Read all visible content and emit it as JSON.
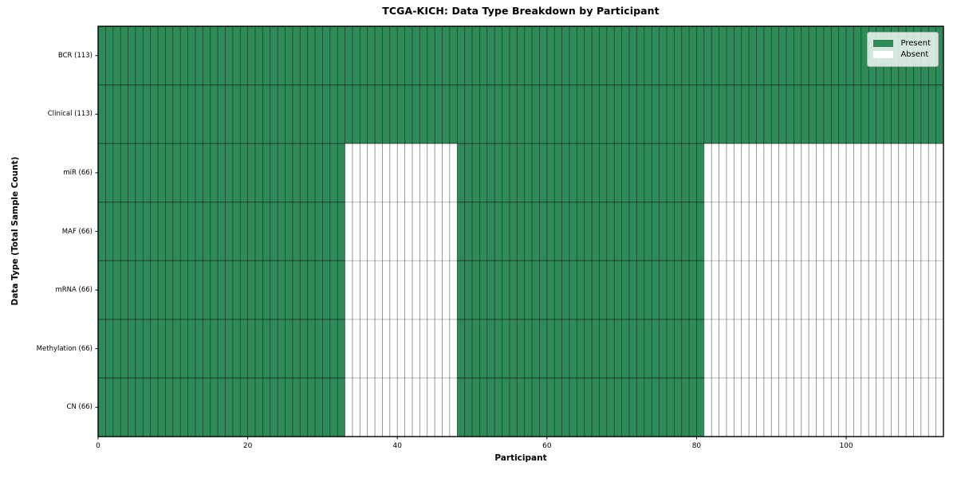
{
  "title": "TCGA-KICH: Data Type Breakdown by Participant",
  "legend": {
    "present_label": "Present",
    "absent_label": "Absent"
  },
  "colors": {
    "present": "#2e8b57",
    "absent": "#ffffff",
    "spine": "#000000",
    "grid_vertical": "rgba(0,0,0,0.5)",
    "grid_horizontal_dark": "rgba(0,0,0,0.6)",
    "grid_horizontal_light": "rgba(0,0,0,0.28)"
  },
  "chart_data": {
    "type": "heatmap",
    "title": "TCGA-KICH: Data Type Breakdown by Participant",
    "xlabel": "Participant",
    "ylabel": "Data Type (Total Sample Count)",
    "xlim": [
      0,
      113
    ],
    "n_participants": 113,
    "x_ticks": [
      0,
      20,
      40,
      60,
      80,
      100
    ],
    "legend": [
      {
        "label": "Present",
        "color": "#2e8b57"
      },
      {
        "label": "Absent",
        "color": "#ffffff"
      }
    ],
    "legend_position": "upper right",
    "grid": true,
    "rows": [
      {
        "label": "BCR (113)",
        "total": 113,
        "present_ranges": [
          [
            0,
            113
          ]
        ]
      },
      {
        "label": "Clinical (113)",
        "total": 113,
        "present_ranges": [
          [
            0,
            113
          ]
        ]
      },
      {
        "label": "miR (66)",
        "total": 66,
        "present_ranges": [
          [
            0,
            33
          ],
          [
            48,
            81
          ]
        ]
      },
      {
        "label": "MAF (66)",
        "total": 66,
        "present_ranges": [
          [
            0,
            33
          ],
          [
            48,
            81
          ]
        ]
      },
      {
        "label": "mRNA (66)",
        "total": 66,
        "present_ranges": [
          [
            0,
            33
          ],
          [
            48,
            81
          ]
        ]
      },
      {
        "label": "Methylation (66)",
        "total": 66,
        "present_ranges": [
          [
            0,
            33
          ],
          [
            48,
            81
          ]
        ]
      },
      {
        "label": "CN (66)",
        "total": 66,
        "present_ranges": [
          [
            0,
            33
          ],
          [
            48,
            81
          ]
        ]
      }
    ]
  }
}
